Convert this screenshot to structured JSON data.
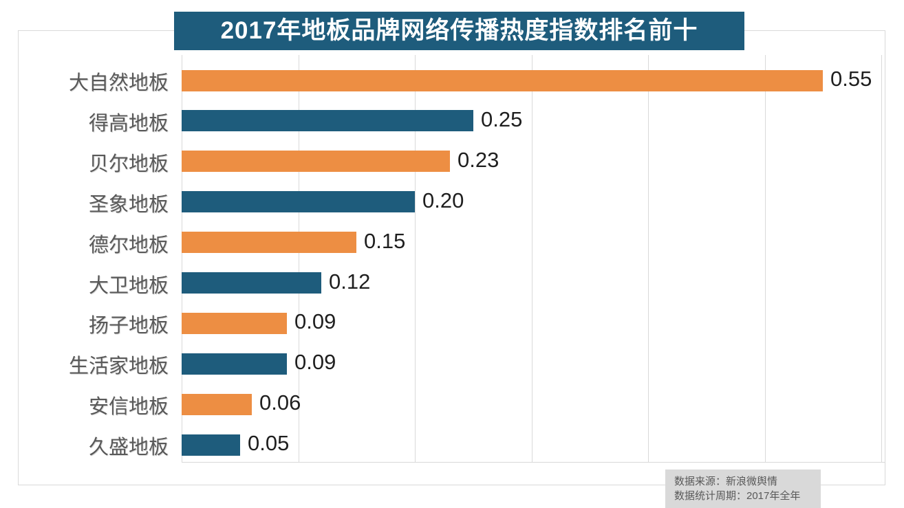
{
  "title": "2017年地板品牌网络传播热度指数排名前十",
  "note": {
    "line1": "数据来源：新浪微舆情",
    "line2": "数据统计周期：2017年全年"
  },
  "colors": {
    "orange": "#ED8E43",
    "blue": "#1E5C7C",
    "title_bg": "#1E5C7C",
    "grid": "#D9D9D9",
    "label_text": "#595959",
    "value_text": "#1F1F1F",
    "note_bg": "#D9D9D9",
    "note_text": "#595959",
    "title_text": "#FFFFFF"
  },
  "chart_data": {
    "type": "bar",
    "orientation": "horizontal",
    "title": "2017年地板品牌网络传播热度指数排名前十",
    "categories": [
      "大自然地板",
      "得高地板",
      "贝尔地板",
      "圣象地板",
      "德尔地板",
      "大卫地板",
      "扬子地板",
      "生活家地板",
      "安信地板",
      "久盛地板"
    ],
    "values": [
      0.55,
      0.25,
      0.23,
      0.2,
      0.15,
      0.12,
      0.09,
      0.09,
      0.06,
      0.05
    ],
    "value_labels": [
      "0.55",
      "0.25",
      "0.23",
      "0.20",
      "0.15",
      "0.12",
      "0.09",
      "0.09",
      "0.06",
      "0.05"
    ],
    "bar_color_keys": [
      "orange",
      "blue",
      "orange",
      "blue",
      "orange",
      "blue",
      "orange",
      "blue",
      "orange",
      "blue"
    ],
    "xlim": [
      0,
      0.6
    ],
    "grid_interval": 0.1,
    "grid": true,
    "legend": false,
    "axis_tick_labels_visible": false
  }
}
